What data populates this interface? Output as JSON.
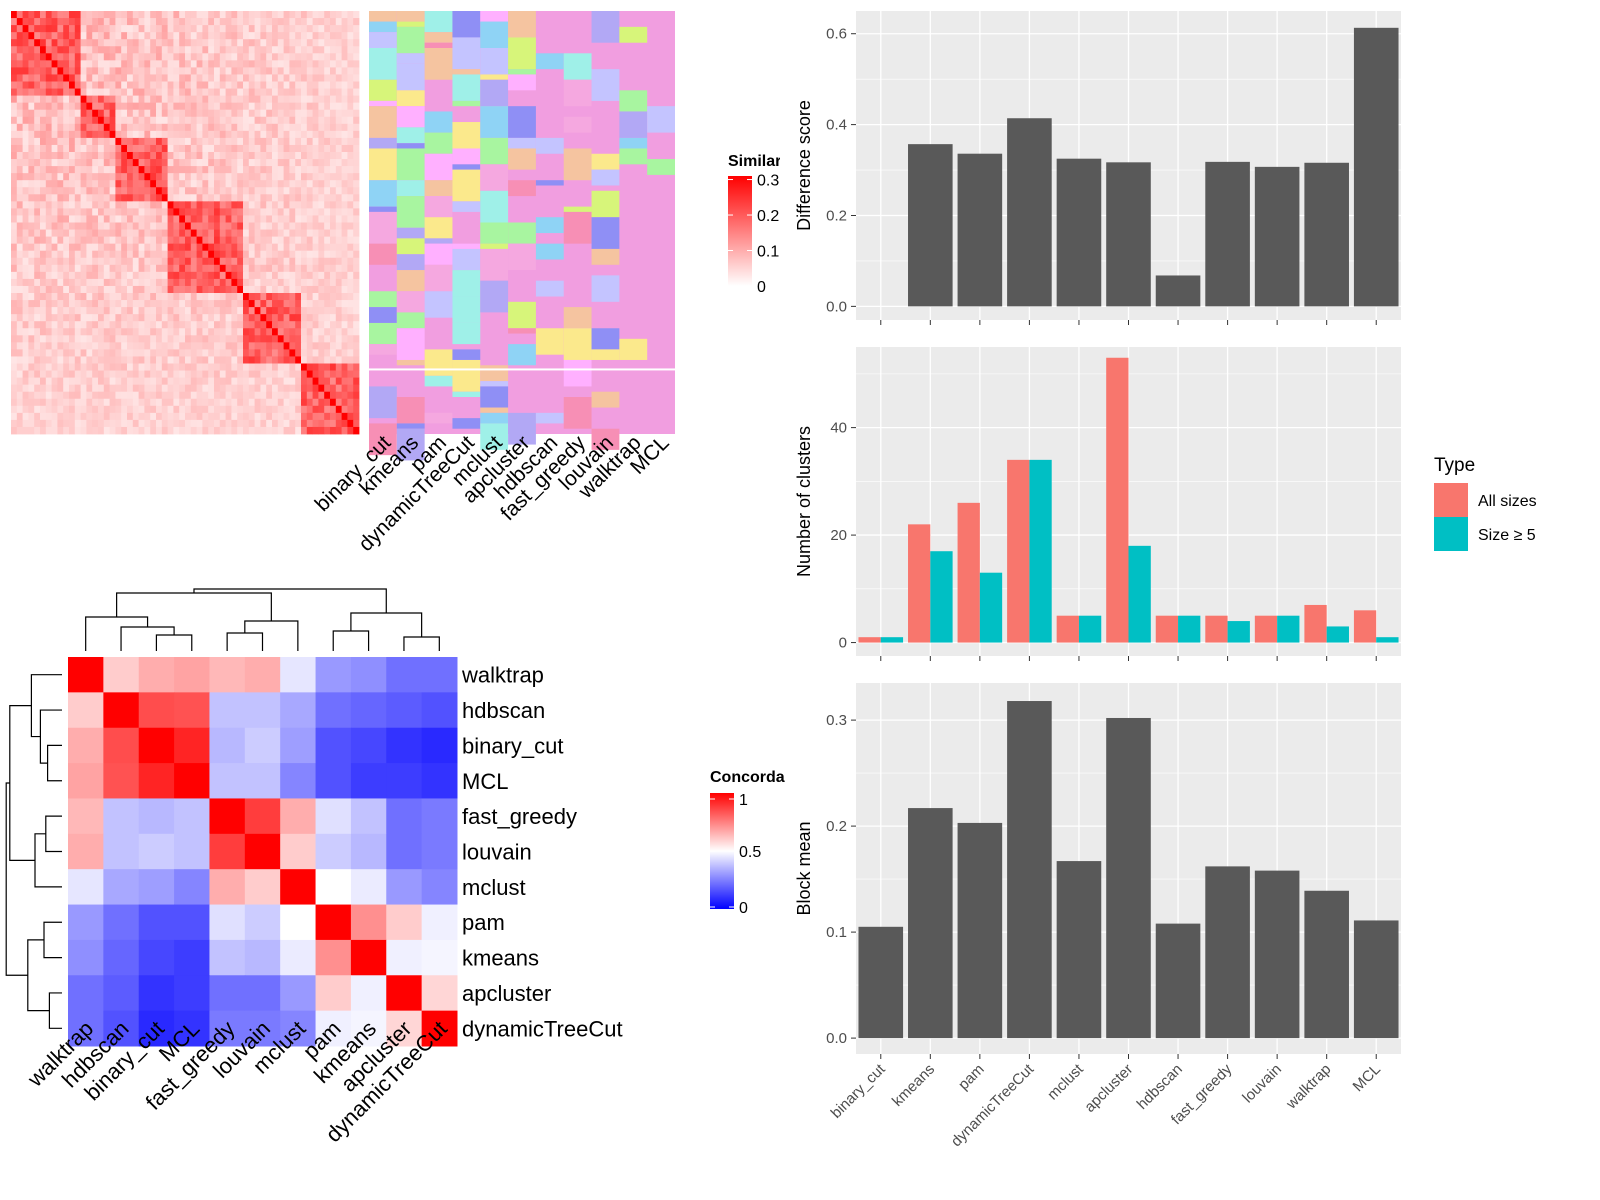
{
  "similarity_legend": {
    "title": "Similarity",
    "ticks": [
      "0.3",
      "0.2",
      "0.1",
      "0"
    ],
    "tick_values": [
      0.3,
      0.2,
      0.1,
      0
    ]
  },
  "concordance_legend": {
    "title": "Concordance",
    "ticks": [
      "1",
      "0.5",
      "0"
    ],
    "tick_values": [
      1,
      0.5,
      0
    ]
  },
  "methods": [
    "binary_cut",
    "kmeans",
    "pam",
    "dynamicTreeCut",
    "mclust",
    "apcluster",
    "hdbscan",
    "fast_greedy",
    "louvain",
    "walktrap",
    "MCL"
  ],
  "concordance_order": [
    "walktrap",
    "hdbscan",
    "binary_cut",
    "MCL",
    "fast_greedy",
    "louvain",
    "mclust",
    "pam",
    "kmeans",
    "apcluster",
    "dynamicTreeCut"
  ],
  "colors": {
    "bar_gray": "#595959",
    "panel_bg": "#ebebeb",
    "all_sizes": "#f8766d",
    "size_ge_5": "#00bfc4",
    "heat_high": "#ff0000",
    "heat_low": "#0000ff"
  },
  "chart_data": [
    {
      "type": "heatmap",
      "name": "concordance",
      "rows": [
        "walktrap",
        "hdbscan",
        "binary_cut",
        "MCL",
        "fast_greedy",
        "louvain",
        "mclust",
        "pam",
        "kmeans",
        "apcluster",
        "dynamicTreeCut"
      ],
      "cols": [
        "walktrap",
        "hdbscan",
        "binary_cut",
        "MCL",
        "fast_greedy",
        "louvain",
        "mclust",
        "pam",
        "kmeans",
        "apcluster",
        "dynamicTreeCut"
      ],
      "values": [
        [
          1.0,
          0.6,
          0.66,
          0.68,
          0.64,
          0.66,
          0.45,
          0.3,
          0.28,
          0.22,
          0.22
        ],
        [
          0.6,
          1.0,
          0.85,
          0.84,
          0.38,
          0.38,
          0.33,
          0.22,
          0.2,
          0.18,
          0.16
        ],
        [
          0.66,
          0.85,
          1.0,
          0.93,
          0.36,
          0.4,
          0.31,
          0.16,
          0.14,
          0.1,
          0.08
        ],
        [
          0.68,
          0.84,
          0.93,
          1.0,
          0.38,
          0.38,
          0.26,
          0.16,
          0.12,
          0.12,
          0.1
        ],
        [
          0.64,
          0.38,
          0.36,
          0.38,
          1.0,
          0.88,
          0.66,
          0.44,
          0.38,
          0.22,
          0.24
        ],
        [
          0.66,
          0.38,
          0.4,
          0.38,
          0.88,
          1.0,
          0.6,
          0.4,
          0.36,
          0.22,
          0.24
        ],
        [
          0.45,
          0.33,
          0.31,
          0.26,
          0.66,
          0.6,
          1.0,
          0.5,
          0.46,
          0.3,
          0.26
        ],
        [
          0.3,
          0.22,
          0.16,
          0.16,
          0.44,
          0.4,
          0.5,
          1.0,
          0.72,
          0.6,
          0.47
        ],
        [
          0.28,
          0.2,
          0.14,
          0.12,
          0.38,
          0.36,
          0.46,
          0.72,
          1.0,
          0.47,
          0.48
        ],
        [
          0.22,
          0.18,
          0.1,
          0.12,
          0.22,
          0.22,
          0.3,
          0.6,
          0.47,
          1.0,
          0.58
        ],
        [
          0.22,
          0.16,
          0.08,
          0.1,
          0.24,
          0.24,
          0.26,
          0.47,
          0.48,
          0.58,
          1.0
        ]
      ]
    },
    {
      "type": "bar",
      "name": "difference_score",
      "categories": [
        "binary_cut",
        "kmeans",
        "pam",
        "dynamicTreeCut",
        "mclust",
        "apcluster",
        "hdbscan",
        "fast_greedy",
        "louvain",
        "walktrap",
        "MCL"
      ],
      "values": [
        0.0,
        0.357,
        0.336,
        0.414,
        0.325,
        0.317,
        0.068,
        0.318,
        0.307,
        0.316,
        0.613
      ],
      "xlabel": "",
      "ylabel": "Difference score",
      "ylim": [
        -0.03,
        0.65
      ],
      "yticks": [
        0.0,
        0.2,
        0.4,
        0.6
      ],
      "ytick_labels": [
        "0.0",
        "0.2",
        "0.4",
        "0.6"
      ],
      "grid": true
    },
    {
      "type": "bar",
      "name": "number_of_clusters",
      "categories": [
        "binary_cut",
        "kmeans",
        "pam",
        "dynamicTreeCut",
        "mclust",
        "apcluster",
        "hdbscan",
        "fast_greedy",
        "louvain",
        "walktrap",
        "MCL"
      ],
      "series": [
        {
          "name": "All sizes",
          "values": [
            1,
            22,
            26,
            34,
            5,
            53,
            5,
            5,
            5,
            7,
            6
          ]
        },
        {
          "name": "Size ≥ 5",
          "values": [
            1,
            17,
            13,
            34,
            5,
            18,
            5,
            4,
            5,
            3,
            1
          ]
        }
      ],
      "ylabel": "Number of clusters",
      "ylim": [
        -2.5,
        55
      ],
      "yticks": [
        0,
        20,
        40
      ],
      "ytick_labels": [
        "0",
        "20",
        "40"
      ],
      "legend_title": "Type",
      "legend_position": "right",
      "grid": true
    },
    {
      "type": "bar",
      "name": "block_mean",
      "categories": [
        "binary_cut",
        "kmeans",
        "pam",
        "dynamicTreeCut",
        "mclust",
        "apcluster",
        "hdbscan",
        "fast_greedy",
        "louvain",
        "walktrap",
        "MCL"
      ],
      "values": [
        0.105,
        0.217,
        0.203,
        0.318,
        0.167,
        0.302,
        0.108,
        0.162,
        0.158,
        0.139,
        0.111
      ],
      "ylabel": "Block mean",
      "ylim": [
        -0.015,
        0.335
      ],
      "yticks": [
        0.0,
        0.1,
        0.2,
        0.3
      ],
      "ytick_labels": [
        "0.0",
        "0.1",
        "0.2",
        "0.3"
      ],
      "grid": true
    }
  ]
}
